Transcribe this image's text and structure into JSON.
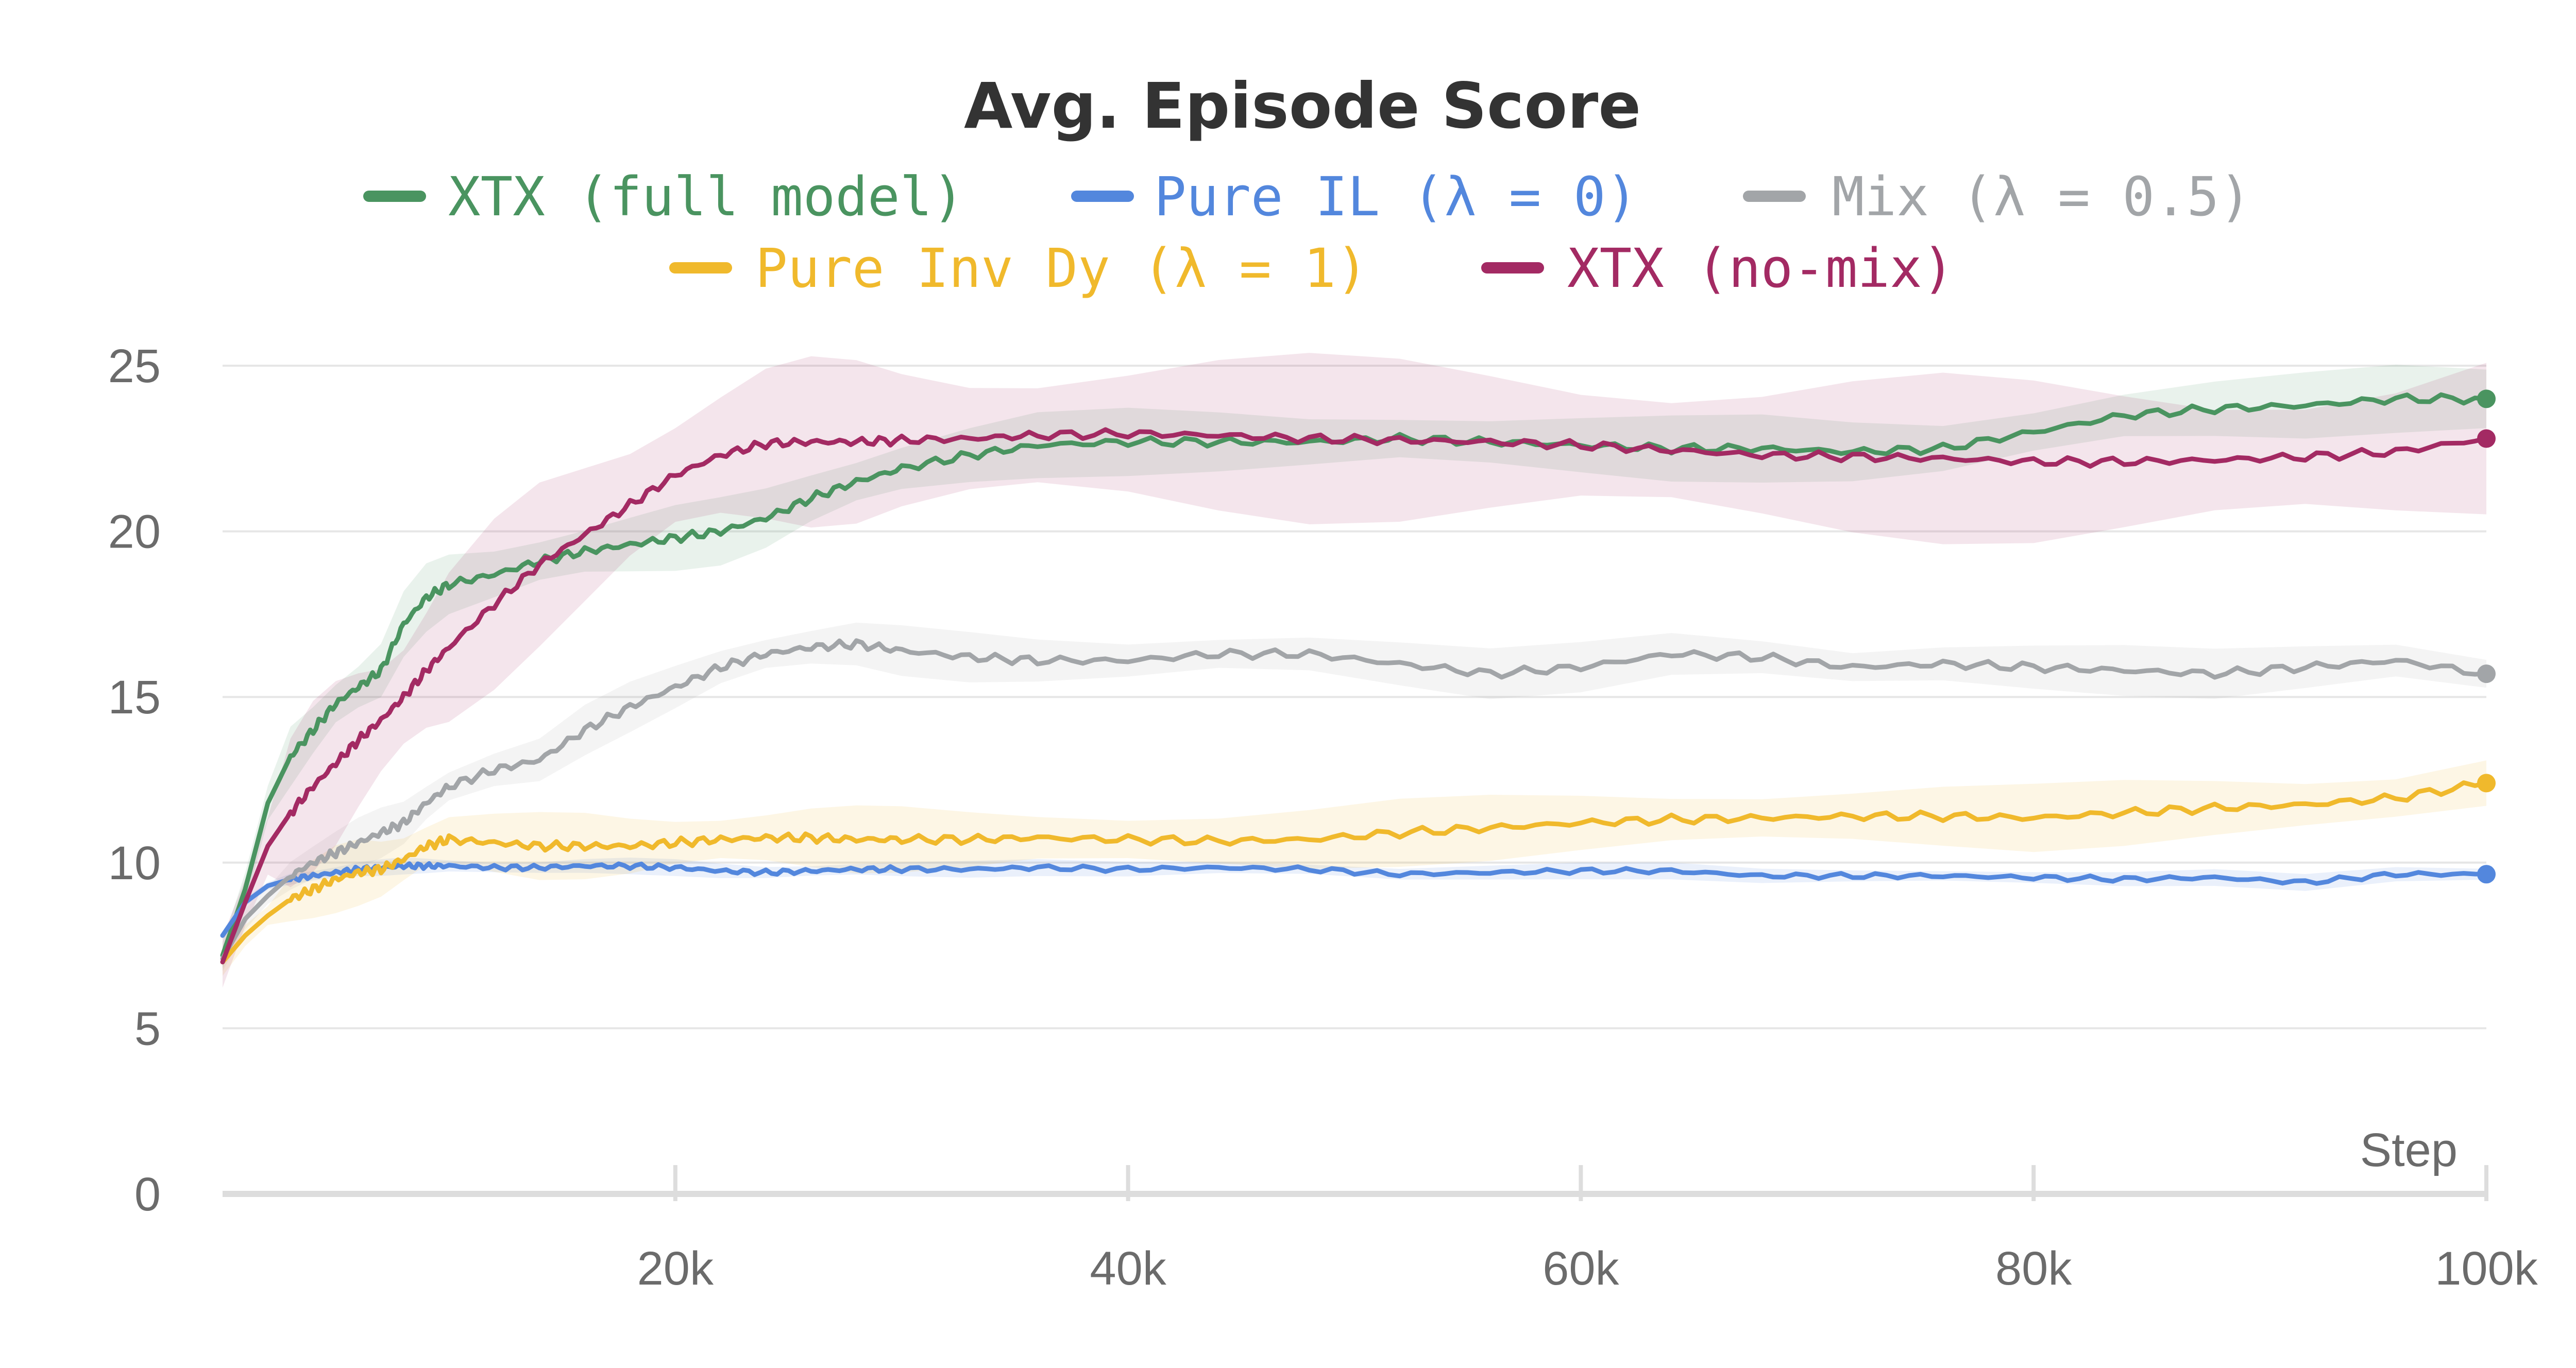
{
  "chart_data": {
    "type": "line",
    "title": "Avg. Episode Score",
    "xlabel": "Step",
    "ylabel": "",
    "xlim": [
      0,
      100000
    ],
    "ylim": [
      0,
      25
    ],
    "x_ticks": [
      20000,
      40000,
      60000,
      80000,
      100000
    ],
    "x_tick_labels": [
      "20k",
      "40k",
      "60k",
      "80k",
      "100k"
    ],
    "y_ticks": [
      0,
      5,
      10,
      15,
      20,
      25
    ],
    "y_tick_labels": [
      "0",
      "5",
      "10",
      "15",
      "20",
      "25"
    ],
    "grid": true,
    "legend_position": "top",
    "x": [
      0,
      1000,
      2000,
      3000,
      4000,
      5000,
      6000,
      7000,
      8000,
      9000,
      10000,
      12000,
      14000,
      16000,
      18000,
      20000,
      22000,
      24000,
      26000,
      28000,
      30000,
      33000,
      36000,
      40000,
      44000,
      48000,
      52000,
      56000,
      60000,
      64000,
      68000,
      72000,
      76000,
      80000,
      84000,
      88000,
      92000,
      96000,
      100000
    ],
    "series": [
      {
        "name": "XTX (full model)",
        "legend_label": "XTX (full model)",
        "color": "#4a9460",
        "values": [
          7.2,
          9.2,
          11.8,
          13.2,
          14.0,
          14.8,
          15.3,
          15.8,
          17.2,
          18.0,
          18.4,
          18.7,
          19.1,
          19.4,
          19.6,
          19.8,
          20.0,
          20.4,
          21.0,
          21.5,
          21.9,
          22.3,
          22.6,
          22.7,
          22.7,
          22.7,
          22.8,
          22.7,
          22.6,
          22.5,
          22.5,
          22.4,
          22.5,
          23.0,
          23.5,
          23.7,
          23.8,
          24.0,
          24.0
        ],
        "band": 0.8
      },
      {
        "name": "Pure IL (λ = 0)",
        "legend_label": "Pure IL (λ = 0)",
        "color": "#5387dd",
        "values": [
          7.8,
          8.8,
          9.3,
          9.5,
          9.6,
          9.7,
          9.8,
          9.85,
          9.9,
          9.9,
          9.9,
          9.85,
          9.85,
          9.9,
          9.9,
          9.85,
          9.75,
          9.7,
          9.75,
          9.8,
          9.8,
          9.8,
          9.85,
          9.8,
          9.85,
          9.8,
          9.65,
          9.7,
          9.75,
          9.75,
          9.6,
          9.6,
          9.6,
          9.55,
          9.5,
          9.55,
          9.4,
          9.65,
          9.65
        ],
        "band": 0.2
      },
      {
        "name": "Mix (λ = 0.5)",
        "legend_label": "Mix (λ = 0.5)",
        "color": "#a2a5a8",
        "values": [
          7.1,
          8.3,
          9.0,
          9.6,
          10.0,
          10.3,
          10.6,
          10.9,
          11.2,
          11.8,
          12.3,
          12.8,
          13.1,
          14.0,
          14.7,
          15.3,
          15.9,
          16.3,
          16.5,
          16.6,
          16.4,
          16.2,
          16.1,
          16.1,
          16.3,
          16.3,
          16.0,
          15.7,
          15.9,
          16.3,
          16.2,
          15.9,
          16.0,
          15.9,
          15.8,
          15.7,
          15.9,
          16.1,
          15.7
        ],
        "band": 0.6
      },
      {
        "name": "Pure Inv Dy (λ = 1)",
        "legend_label": "Pure Inv Dy (λ = 1)",
        "color": "#f0b92c",
        "values": [
          7.0,
          7.8,
          8.4,
          8.9,
          9.2,
          9.5,
          9.7,
          9.8,
          10.1,
          10.5,
          10.7,
          10.6,
          10.5,
          10.5,
          10.5,
          10.6,
          10.7,
          10.75,
          10.75,
          10.7,
          10.7,
          10.7,
          10.75,
          10.7,
          10.65,
          10.7,
          10.9,
          11.05,
          11.2,
          11.3,
          11.35,
          11.4,
          11.4,
          11.35,
          11.5,
          11.65,
          11.75,
          11.95,
          12.4
        ],
        "band": 0.8
      },
      {
        "name": "XTX (no-mix)",
        "legend_label": "XTX (no-mix)",
        "color": "#a32a63",
        "values": [
          7.0,
          8.8,
          10.5,
          11.5,
          12.3,
          13.0,
          13.7,
          14.3,
          15.0,
          15.8,
          16.5,
          17.8,
          19.0,
          19.9,
          20.8,
          21.7,
          22.3,
          22.65,
          22.7,
          22.7,
          22.75,
          22.8,
          22.9,
          22.95,
          22.9,
          22.8,
          22.75,
          22.7,
          22.6,
          22.45,
          22.3,
          22.25,
          22.2,
          22.1,
          22.1,
          22.15,
          22.25,
          22.4,
          22.8
        ],
        "band": 2.0
      }
    ]
  }
}
